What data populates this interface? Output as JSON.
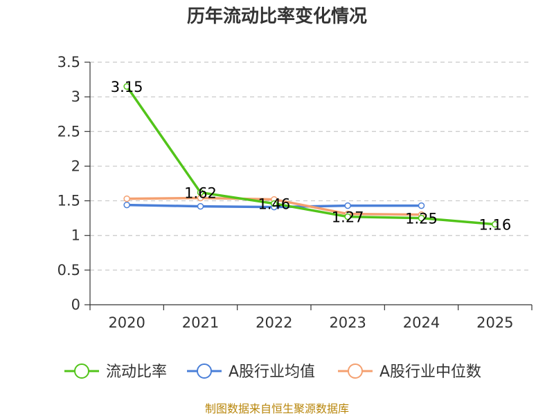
{
  "chart_data": {
    "type": "line",
    "title": "历年流动比率变化情况",
    "categories": [
      "2020",
      "2021",
      "2022",
      "2023",
      "2024",
      "2025"
    ],
    "ylim": [
      0,
      3.5
    ],
    "yticks": [
      "0",
      "0.5",
      "1",
      "1.5",
      "2",
      "2.5",
      "3",
      "3.5"
    ],
    "grid": true,
    "legend_position": "bottom",
    "series": [
      {
        "name": "流动比率",
        "color": "#52c41a",
        "values": [
          3.15,
          1.62,
          1.46,
          1.27,
          1.25,
          1.16
        ],
        "labels": [
          "3.15",
          "1.62",
          "1.46",
          "1.27",
          "1.25",
          "1.16"
        ]
      },
      {
        "name": "A股行业均值",
        "color": "#4a7fd8",
        "values": [
          1.44,
          1.42,
          1.41,
          1.43,
          1.43,
          null
        ]
      },
      {
        "name": "A股行业中位数",
        "color": "#f4a070",
        "values": [
          1.53,
          1.54,
          1.52,
          1.31,
          1.3,
          null
        ]
      }
    ]
  },
  "footer": {
    "source": "制图数据来自恒生聚源数据库"
  }
}
